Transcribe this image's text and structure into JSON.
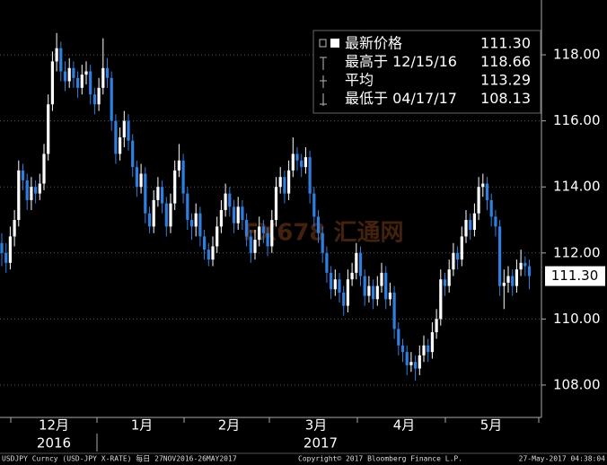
{
  "chart_data": {
    "type": "candlestick",
    "ylim": [
      107.02,
      119.66
    ],
    "yticks": [
      {
        "value": 108,
        "label": "108.00"
      },
      {
        "value": 110,
        "label": "110.00"
      },
      {
        "value": 112,
        "label": "112.00"
      },
      {
        "value": 114,
        "label": "114.00"
      },
      {
        "value": 116,
        "label": "116.00"
      },
      {
        "value": 118,
        "label": "118.00"
      }
    ],
    "grid": true,
    "up_color": "#ffffff",
    "down_color": "#2f7fe0",
    "months": [
      "12月",
      "1月",
      "2月",
      "3月",
      "4月",
      "5月"
    ],
    "years": [
      "2016",
      "2017"
    ],
    "last_label": "111.30",
    "legend": [
      {
        "label": "最新价格",
        "value": "111.30"
      },
      {
        "label": "最高于 12/15/16",
        "value": "118.66"
      },
      {
        "label": "平均",
        "value": "113.29"
      },
      {
        "label": "最低于 04/17/17",
        "value": "108.13"
      }
    ],
    "watermark": "FX678 汇通网",
    "footer": {
      "left": "USDJPY Curncy (USD-JPY X-RATE)  每日 27NOV2016-26MAY2017",
      "center": "Copyright© 2017 Bloomberg Finance L.P.",
      "right": "27-May-2017 04:38:04"
    },
    "ohlc": [
      [
        112.3,
        112.6,
        111.6,
        112.0
      ],
      [
        112.0,
        112.3,
        111.4,
        111.7
      ],
      [
        111.7,
        112.8,
        111.5,
        112.5
      ],
      [
        112.5,
        113.3,
        112.2,
        113.0
      ],
      [
        113.0,
        114.8,
        112.8,
        114.5
      ],
      [
        114.5,
        114.7,
        113.9,
        114.2
      ],
      [
        114.2,
        114.4,
        113.3,
        113.6
      ],
      [
        113.6,
        114.3,
        113.3,
        114.0
      ],
      [
        114.0,
        114.2,
        113.5,
        113.8
      ],
      [
        113.8,
        114.4,
        113.6,
        114.1
      ],
      [
        114.1,
        115.3,
        113.9,
        115.0
      ],
      [
        115.0,
        116.8,
        114.8,
        116.5
      ],
      [
        116.5,
        118.1,
        116.3,
        117.8
      ],
      [
        117.8,
        118.66,
        117.5,
        118.2
      ],
      [
        118.2,
        118.4,
        117.2,
        117.5
      ],
      [
        117.5,
        117.8,
        116.9,
        117.2
      ],
      [
        117.2,
        117.9,
        117.0,
        117.6
      ],
      [
        117.6,
        117.8,
        117.0,
        117.3
      ],
      [
        117.3,
        117.5,
        116.7,
        117.0
      ],
      [
        117.0,
        117.7,
        116.8,
        117.4
      ],
      [
        117.4,
        117.8,
        117.1,
        117.5
      ],
      [
        117.5,
        117.7,
        116.5,
        116.8
      ],
      [
        116.8,
        117.0,
        116.2,
        116.5
      ],
      [
        116.5,
        117.3,
        116.3,
        117.0
      ],
      [
        117.0,
        118.5,
        116.8,
        117.6
      ],
      [
        117.6,
        117.9,
        117.0,
        117.3
      ],
      [
        117.3,
        117.5,
        115.7,
        116.0
      ],
      [
        116.0,
        116.2,
        114.7,
        115.0
      ],
      [
        115.0,
        115.8,
        114.8,
        115.5
      ],
      [
        115.5,
        116.3,
        115.2,
        116.0
      ],
      [
        116.0,
        116.2,
        115.1,
        115.4
      ],
      [
        115.4,
        115.6,
        114.3,
        114.6
      ],
      [
        114.6,
        114.8,
        113.7,
        114.0
      ],
      [
        114.0,
        114.7,
        113.8,
        114.4
      ],
      [
        114.4,
        114.6,
        112.9,
        113.2
      ],
      [
        113.2,
        113.4,
        112.6,
        112.8
      ],
      [
        112.8,
        113.9,
        112.6,
        113.6
      ],
      [
        113.6,
        114.3,
        113.4,
        114.0
      ],
      [
        114.0,
        114.2,
        113.2,
        113.5
      ],
      [
        113.5,
        113.7,
        112.5,
        112.8
      ],
      [
        112.8,
        113.8,
        112.6,
        113.5
      ],
      [
        113.5,
        114.8,
        113.3,
        114.5
      ],
      [
        114.5,
        115.3,
        114.3,
        114.8
      ],
      [
        114.8,
        115.0,
        113.5,
        113.8
      ],
      [
        113.8,
        114.0,
        112.7,
        113.0
      ],
      [
        113.0,
        113.2,
        112.4,
        112.8
      ],
      [
        112.8,
        113.5,
        112.5,
        113.2
      ],
      [
        113.2,
        113.4,
        112.2,
        112.5
      ],
      [
        112.5,
        112.7,
        111.8,
        112.1
      ],
      [
        112.1,
        112.3,
        111.6,
        111.8
      ],
      [
        111.8,
        112.5,
        111.6,
        112.2
      ],
      [
        112.2,
        113.1,
        112.0,
        112.8
      ],
      [
        112.8,
        113.6,
        112.6,
        113.3
      ],
      [
        113.3,
        114.1,
        113.1,
        113.8
      ],
      [
        113.8,
        114.0,
        113.1,
        113.4
      ],
      [
        113.4,
        113.6,
        112.6,
        112.9
      ],
      [
        112.9,
        113.7,
        112.7,
        113.4
      ],
      [
        113.4,
        113.6,
        112.7,
        113.0
      ],
      [
        113.0,
        113.2,
        112.2,
        112.5
      ],
      [
        112.5,
        112.7,
        111.7,
        112.0
      ],
      [
        112.0,
        112.7,
        111.8,
        112.4
      ],
      [
        112.4,
        113.1,
        112.2,
        112.8
      ],
      [
        112.8,
        113.0,
        112.3,
        112.6
      ],
      [
        112.6,
        112.8,
        111.9,
        112.2
      ],
      [
        112.2,
        113.3,
        112.0,
        113.0
      ],
      [
        113.0,
        114.3,
        112.8,
        114.0
      ],
      [
        114.0,
        114.6,
        113.8,
        114.3
      ],
      [
        114.3,
        114.5,
        113.5,
        113.8
      ],
      [
        113.8,
        114.8,
        113.6,
        114.5
      ],
      [
        114.5,
        115.5,
        114.3,
        115.0
      ],
      [
        115.0,
        115.2,
        114.5,
        114.8
      ],
      [
        114.8,
        115.0,
        114.3,
        114.6
      ],
      [
        114.6,
        115.2,
        114.4,
        114.9
      ],
      [
        114.9,
        115.1,
        113.5,
        113.8
      ],
      [
        113.8,
        114.0,
        112.8,
        113.1
      ],
      [
        113.1,
        113.3,
        112.3,
        112.6
      ],
      [
        112.6,
        112.8,
        111.7,
        112.0
      ],
      [
        112.0,
        112.2,
        111.1,
        111.4
      ],
      [
        111.4,
        111.6,
        110.6,
        110.9
      ],
      [
        110.9,
        111.5,
        110.7,
        111.2
      ],
      [
        111.2,
        111.4,
        110.5,
        110.8
      ],
      [
        110.8,
        111.0,
        110.1,
        110.4
      ],
      [
        110.4,
        111.5,
        110.2,
        111.2
      ],
      [
        111.2,
        111.7,
        111.0,
        111.4
      ],
      [
        111.4,
        112.3,
        111.2,
        112.0
      ],
      [
        112.0,
        112.2,
        111.0,
        111.3
      ],
      [
        111.3,
        111.5,
        110.4,
        110.7
      ],
      [
        110.7,
        111.3,
        110.5,
        111.0
      ],
      [
        111.0,
        111.2,
        110.3,
        110.6
      ],
      [
        110.6,
        111.3,
        110.4,
        111.0
      ],
      [
        111.0,
        111.7,
        110.8,
        111.4
      ],
      [
        111.4,
        111.6,
        110.3,
        110.6
      ],
      [
        110.6,
        111.1,
        110.4,
        110.8
      ],
      [
        110.8,
        111.0,
        109.4,
        109.7
      ],
      [
        109.7,
        109.9,
        108.9,
        109.2
      ],
      [
        109.2,
        109.4,
        108.7,
        109.0
      ],
      [
        109.0,
        109.2,
        108.3,
        108.6
      ],
      [
        108.6,
        109.0,
        108.4,
        108.7
      ],
      [
        108.7,
        108.9,
        108.13,
        108.5
      ],
      [
        108.5,
        109.2,
        108.3,
        108.9
      ],
      [
        108.9,
        109.5,
        108.7,
        109.2
      ],
      [
        109.2,
        109.4,
        108.7,
        109.0
      ],
      [
        109.0,
        109.9,
        108.8,
        109.6
      ],
      [
        109.6,
        110.3,
        109.4,
        110.0
      ],
      [
        110.0,
        111.5,
        109.8,
        111.2
      ],
      [
        111.2,
        111.4,
        110.7,
        111.0
      ],
      [
        111.0,
        111.8,
        110.8,
        111.5
      ],
      [
        111.5,
        112.3,
        111.3,
        112.0
      ],
      [
        112.0,
        112.2,
        111.5,
        111.8
      ],
      [
        111.8,
        112.8,
        111.6,
        112.5
      ],
      [
        112.5,
        113.3,
        112.3,
        113.0
      ],
      [
        113.0,
        113.2,
        112.4,
        112.7
      ],
      [
        112.7,
        113.5,
        112.5,
        113.2
      ],
      [
        113.2,
        114.3,
        113.0,
        114.0
      ],
      [
        114.0,
        114.4,
        113.7,
        114.1
      ],
      [
        114.1,
        114.3,
        113.3,
        113.6
      ],
      [
        113.6,
        113.8,
        112.8,
        113.1
      ],
      [
        113.1,
        113.3,
        112.5,
        112.8
      ],
      [
        112.8,
        113.0,
        110.7,
        111.0
      ],
      [
        111.0,
        111.5,
        110.3,
        111.1
      ],
      [
        111.1,
        111.6,
        110.8,
        111.3
      ],
      [
        111.3,
        111.5,
        110.7,
        111.0
      ],
      [
        111.0,
        111.8,
        110.8,
        111.5
      ],
      [
        111.5,
        112.1,
        111.3,
        111.7
      ],
      [
        111.7,
        111.9,
        111.3,
        111.6
      ],
      [
        111.6,
        111.8,
        110.9,
        111.3
      ]
    ]
  }
}
